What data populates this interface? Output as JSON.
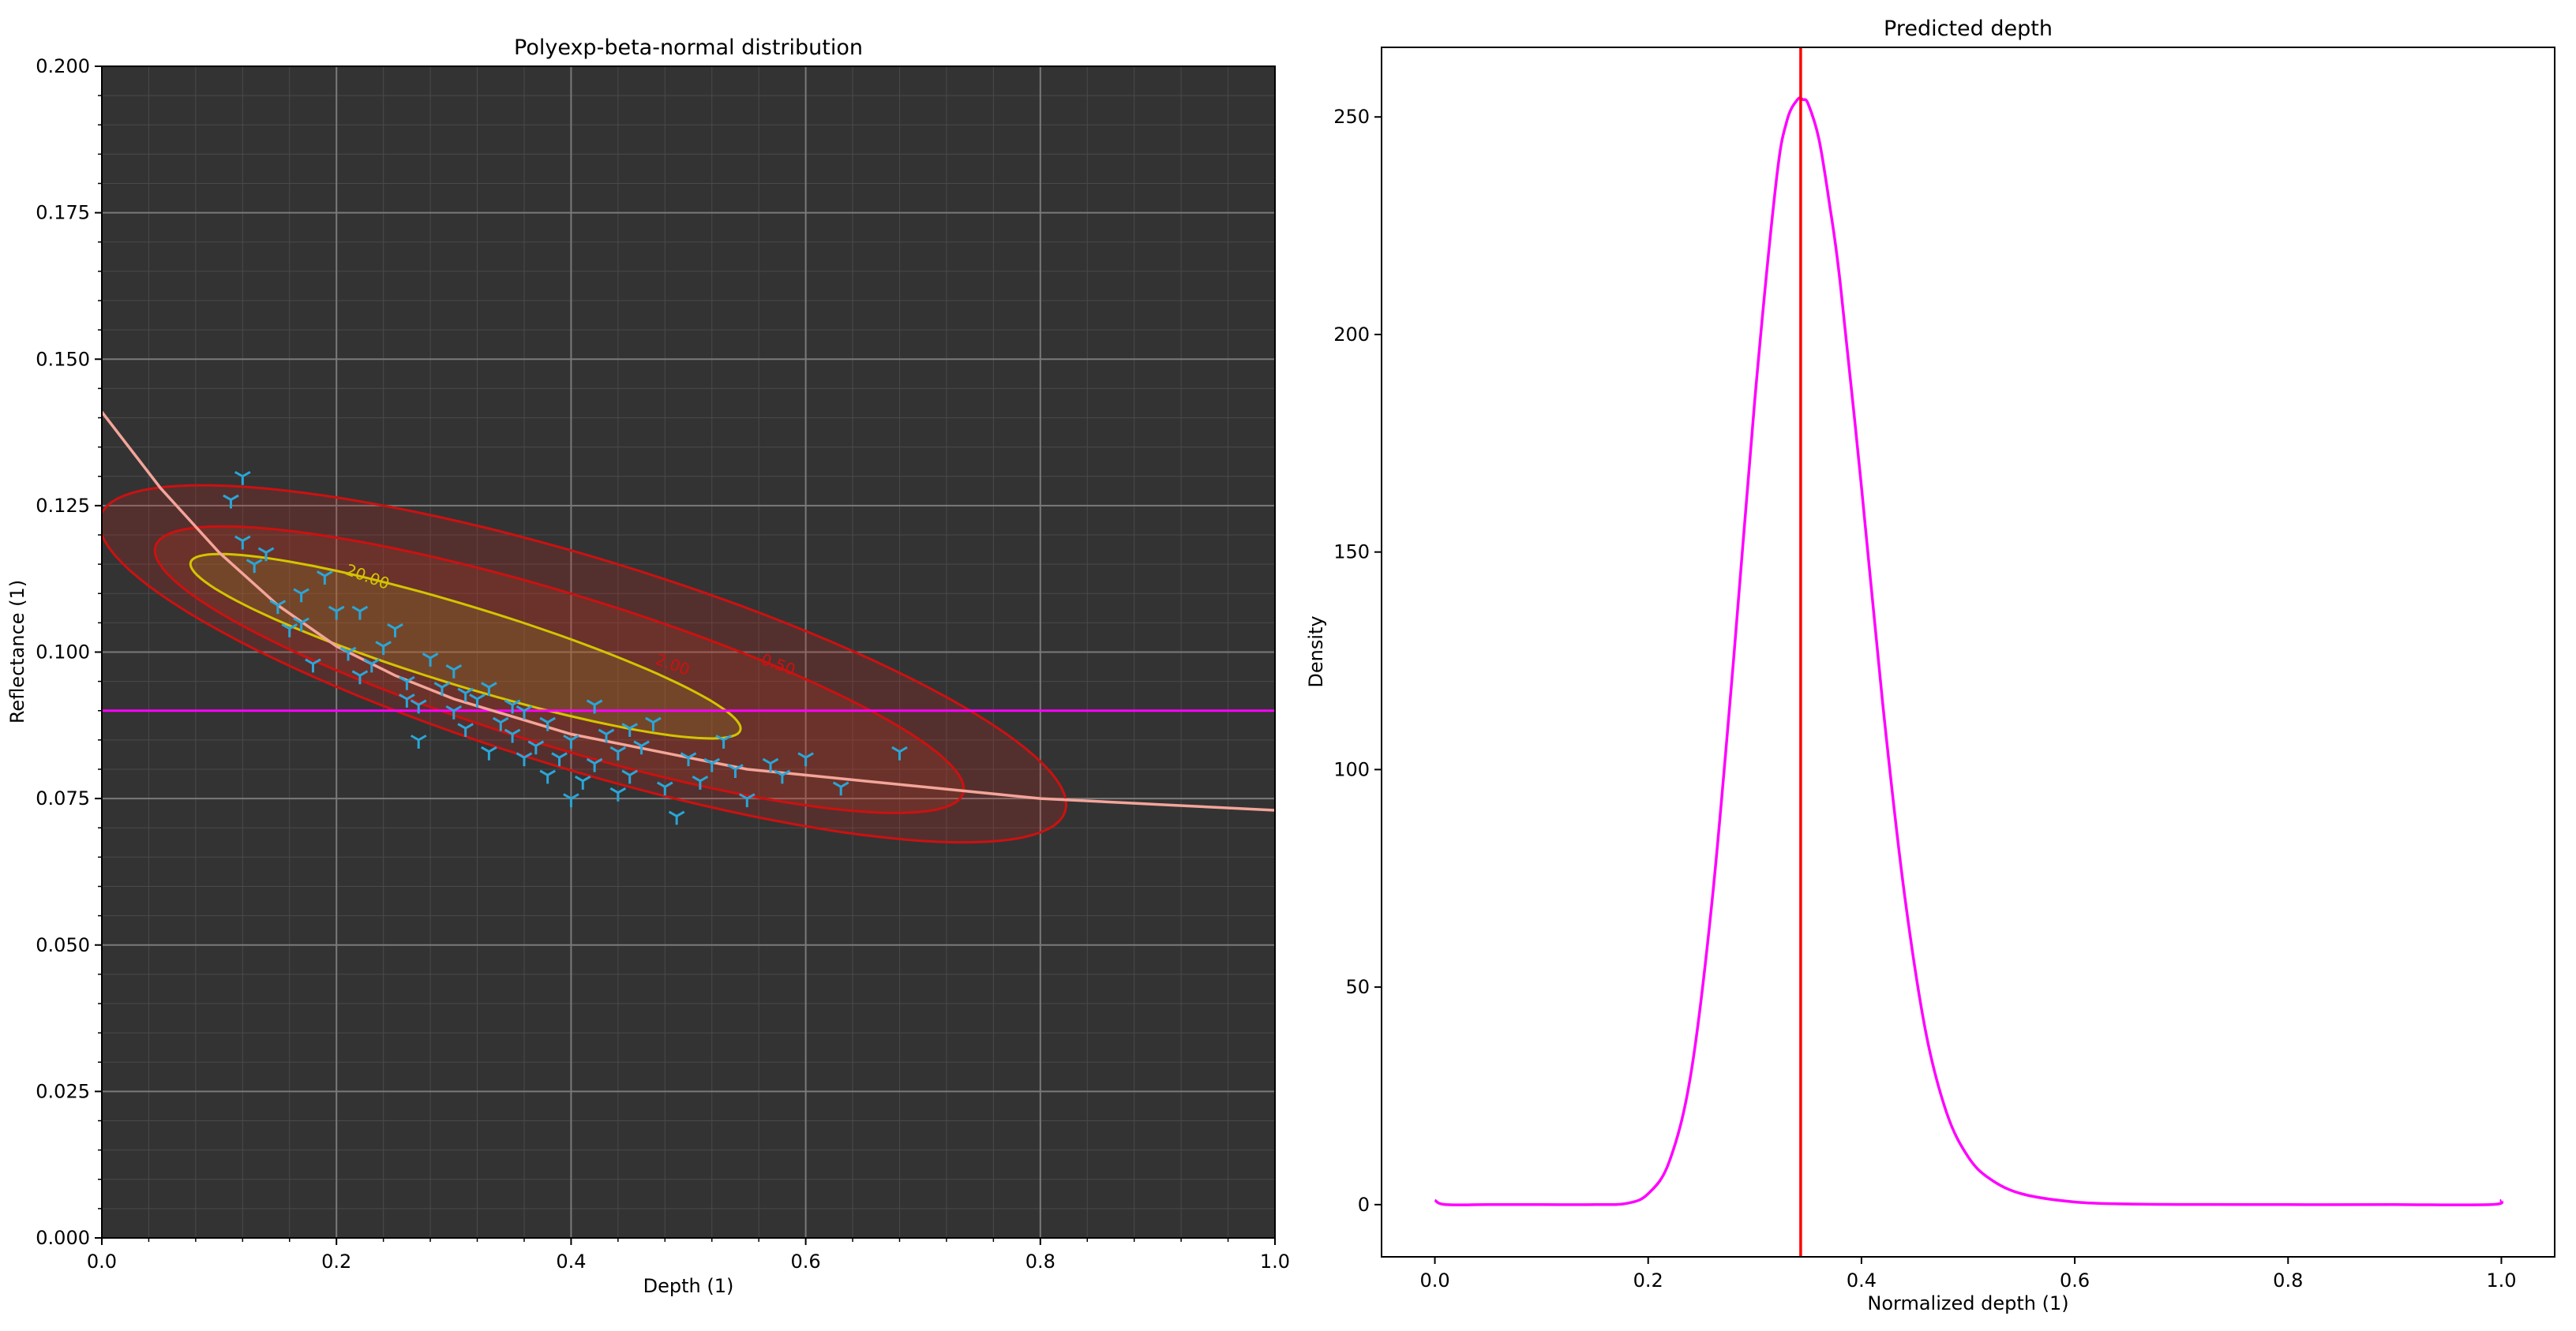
{
  "chart_data": [
    {
      "type": "scatter",
      "title": "Polyexp-beta-normal distribution",
      "xlabel": "Depth (1)",
      "ylabel": "Reflectance (1)",
      "xlim": [
        0.0,
        1.0
      ],
      "ylim": [
        0.0,
        0.2
      ],
      "xticks": [
        "0.0",
        "0.2",
        "0.4",
        "0.6",
        "0.8",
        "1.0"
      ],
      "yticks": [
        "0.000",
        "0.025",
        "0.050",
        "0.075",
        "0.100",
        "0.125",
        "0.150",
        "0.175",
        "0.200"
      ],
      "grid": true,
      "background": "#333333",
      "horizontal_line": {
        "y": 0.09,
        "color": "#ff00ff"
      },
      "fit_curve": {
        "color": "#f4a59a",
        "x": [
          0.0,
          0.05,
          0.1,
          0.15,
          0.2,
          0.25,
          0.3,
          0.35,
          0.4,
          0.45,
          0.5,
          0.55,
          0.6,
          0.65,
          0.7,
          0.8,
          0.9,
          1.0
        ],
        "y": [
          0.141,
          0.128,
          0.117,
          0.108,
          0.101,
          0.096,
          0.092,
          0.089,
          0.086,
          0.084,
          0.082,
          0.08,
          0.079,
          0.078,
          0.077,
          0.075,
          0.074,
          0.073
        ]
      },
      "contours": [
        {
          "level": "0.50",
          "color": "#cc1111",
          "center": [
            0.41,
            0.098
          ],
          "semi_major": 0.43,
          "semi_minor": 0.018,
          "angle_deg": -17
        },
        {
          "level": "2.00",
          "color": "#cc1111",
          "center": [
            0.39,
            0.097
          ],
          "semi_major": 0.36,
          "semi_minor": 0.013,
          "angle_deg": -17
        },
        {
          "level": "20.00",
          "color": "#d4c400",
          "center": [
            0.31,
            0.101
          ],
          "semi_major": 0.245,
          "semi_minor": 0.0068,
          "angle_deg": -17
        }
      ],
      "contour_labels": [
        {
          "text": "20.00",
          "x": 0.225,
          "y": 0.112,
          "color": "#d4c400"
        },
        {
          "text": "2.00",
          "x": 0.485,
          "y": 0.097,
          "color": "#cc1111"
        },
        {
          "text": "0.50",
          "x": 0.575,
          "y": 0.097,
          "color": "#cc1111"
        }
      ],
      "scatter": {
        "marker": "tri_down",
        "color": "#2aa6d8",
        "points": [
          [
            0.12,
            0.13
          ],
          [
            0.11,
            0.126
          ],
          [
            0.12,
            0.119
          ],
          [
            0.13,
            0.115
          ],
          [
            0.14,
            0.117
          ],
          [
            0.15,
            0.108
          ],
          [
            0.16,
            0.104
          ],
          [
            0.17,
            0.11
          ],
          [
            0.19,
            0.113
          ],
          [
            0.2,
            0.107
          ],
          [
            0.21,
            0.1
          ],
          [
            0.22,
            0.096
          ],
          [
            0.23,
            0.098
          ],
          [
            0.25,
            0.104
          ],
          [
            0.26,
            0.095
          ],
          [
            0.27,
            0.091
          ],
          [
            0.28,
            0.099
          ],
          [
            0.29,
            0.094
          ],
          [
            0.3,
            0.09
          ],
          [
            0.31,
            0.087
          ],
          [
            0.32,
            0.092
          ],
          [
            0.33,
            0.094
          ],
          [
            0.34,
            0.088
          ],
          [
            0.35,
            0.086
          ],
          [
            0.36,
            0.09
          ],
          [
            0.37,
            0.084
          ],
          [
            0.38,
            0.088
          ],
          [
            0.39,
            0.082
          ],
          [
            0.4,
            0.085
          ],
          [
            0.41,
            0.078
          ],
          [
            0.42,
            0.081
          ],
          [
            0.43,
            0.086
          ],
          [
            0.44,
            0.083
          ],
          [
            0.45,
            0.079
          ],
          [
            0.46,
            0.084
          ],
          [
            0.48,
            0.077
          ],
          [
            0.49,
            0.072
          ],
          [
            0.5,
            0.082
          ],
          [
            0.52,
            0.081
          ],
          [
            0.53,
            0.085
          ],
          [
            0.55,
            0.075
          ],
          [
            0.57,
            0.081
          ],
          [
            0.6,
            0.082
          ],
          [
            0.63,
            0.077
          ],
          [
            0.68,
            0.083
          ],
          [
            0.17,
            0.105
          ],
          [
            0.18,
            0.098
          ],
          [
            0.24,
            0.101
          ],
          [
            0.27,
            0.085
          ],
          [
            0.3,
            0.097
          ],
          [
            0.33,
            0.083
          ],
          [
            0.36,
            0.082
          ],
          [
            0.4,
            0.075
          ],
          [
            0.44,
            0.076
          ],
          [
            0.47,
            0.088
          ],
          [
            0.22,
            0.107
          ],
          [
            0.26,
            0.092
          ],
          [
            0.31,
            0.093
          ],
          [
            0.35,
            0.091
          ],
          [
            0.38,
            0.079
          ],
          [
            0.42,
            0.091
          ],
          [
            0.45,
            0.087
          ],
          [
            0.51,
            0.078
          ],
          [
            0.54,
            0.08
          ],
          [
            0.58,
            0.079
          ]
        ]
      }
    },
    {
      "type": "line",
      "title": "Predicted depth",
      "xlabel": "Normalized depth (1)",
      "ylabel": "Density",
      "xlim": [
        -0.05,
        1.05
      ],
      "ylim": [
        -12,
        266
      ],
      "xticks": [
        "0.0",
        "0.2",
        "0.4",
        "0.6",
        "0.8",
        "1.0"
      ],
      "yticks": [
        "0",
        "50",
        "100",
        "150",
        "200",
        "250"
      ],
      "grid": false,
      "vertical_line": {
        "x": 0.343,
        "color": "#ff0000"
      },
      "series": [
        {
          "color": "#ff00ff",
          "x": [
            0.0,
            0.01,
            0.05,
            0.1,
            0.15,
            0.18,
            0.2,
            0.22,
            0.24,
            0.26,
            0.28,
            0.3,
            0.32,
            0.33,
            0.34,
            0.345,
            0.35,
            0.36,
            0.37,
            0.38,
            0.4,
            0.42,
            0.44,
            0.46,
            0.48,
            0.5,
            0.52,
            0.55,
            0.6,
            0.65,
            0.7,
            0.8,
            0.9,
            0.99,
            1.0
          ],
          "y": [
            1.0,
            0.0,
            0.0,
            0.0,
            0.0,
            0.3,
            2.5,
            10,
            30,
            70,
            125,
            185,
            235,
            249,
            254,
            254,
            253,
            245,
            230,
            212,
            165,
            115,
            72,
            40,
            21,
            11,
            6,
            2.5,
            0.6,
            0.15,
            0.05,
            0.0,
            0.0,
            0.0,
            1.0
          ]
        }
      ]
    }
  ]
}
